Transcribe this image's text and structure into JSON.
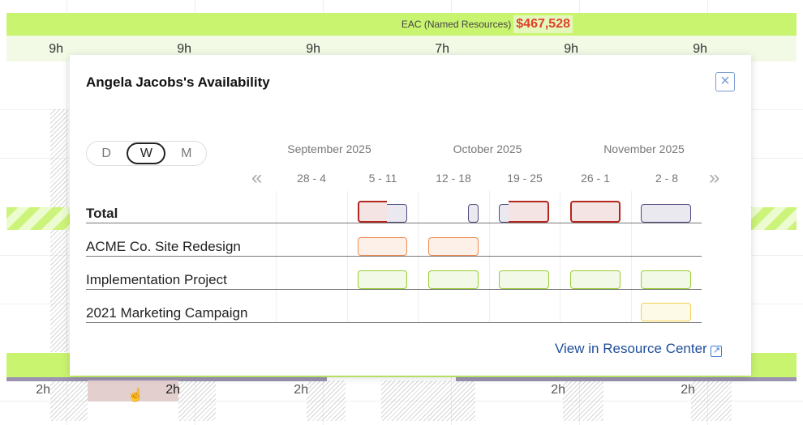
{
  "background": {
    "eac_label": "EAC (Named Resources)",
    "eac_value": "$467,528",
    "top_hours": [
      "9h",
      "9h",
      "9h",
      "7h",
      "9h",
      "9h"
    ],
    "bottom_hours": [
      "2h",
      "2h",
      "2h",
      "2h",
      "2h"
    ]
  },
  "popup": {
    "title": "Angela Jacobs's Availability",
    "close_icon": "close-icon",
    "toggle": [
      "D",
      "W",
      "M"
    ],
    "selected": "W",
    "months": [
      "September 2025",
      "October 2025",
      "November 2025"
    ],
    "weeks": [
      "28 - 4",
      "5 - 11",
      "12 - 18",
      "19 - 25",
      "26 - 1",
      "2 - 8"
    ],
    "prev": "«",
    "next": "»",
    "rows": [
      "Total",
      "ACME Co. Site Redesign",
      "Implementation Project",
      "2021 Marketing Campaign"
    ],
    "link": "View in Resource Center"
  },
  "colors": {
    "over": "#b3261e",
    "under": "#4f4a7e",
    "acme": "#f08c50",
    "impl": "#9acd32",
    "marketing": "#f0d050",
    "eac": "#c9f46f"
  }
}
